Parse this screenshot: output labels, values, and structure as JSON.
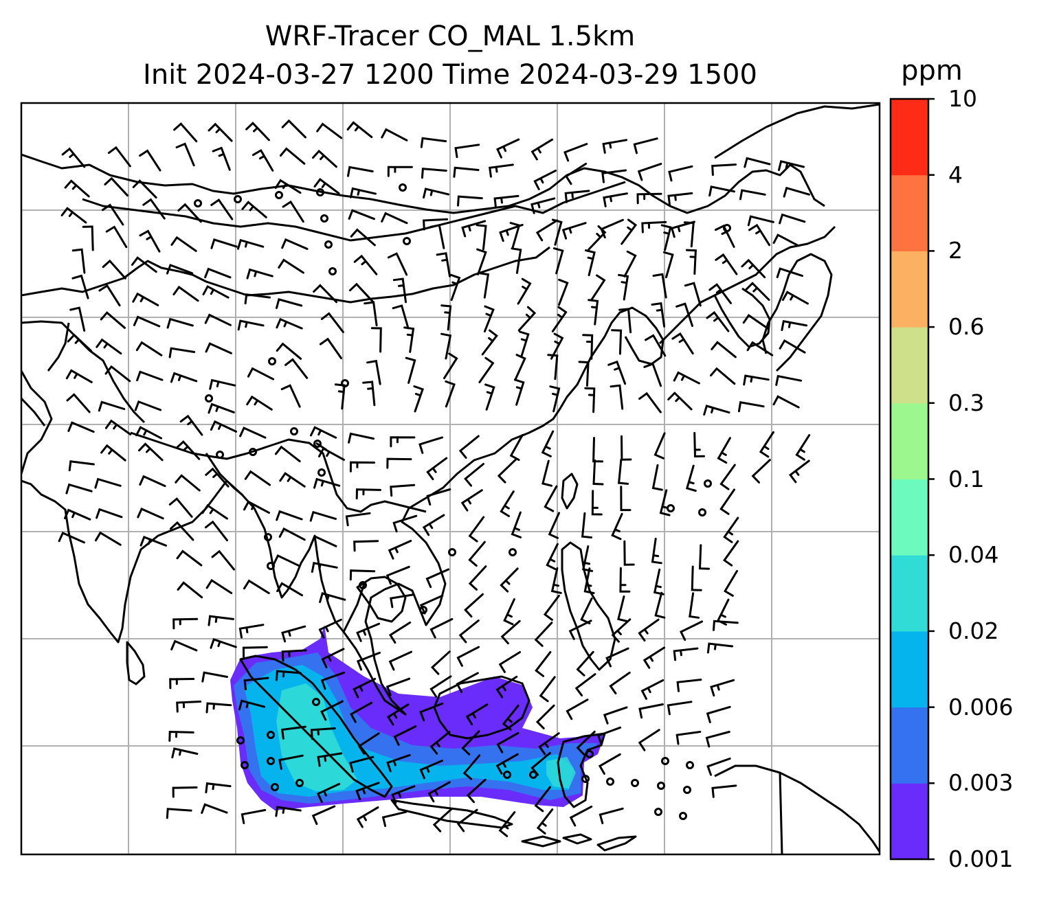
{
  "title": {
    "line1": "WRF-Tracer CO_MAL 1.5km",
    "line2": "Init 2024-03-27 1200 Time 2024-03-29 1500"
  },
  "colorbar": {
    "unit": "ppm",
    "levels": [
      "0.001",
      "0.003",
      "0.006",
      "0.02",
      "0.04",
      "0.1",
      "0.3",
      "0.6",
      "2",
      "4",
      "10"
    ],
    "colors": [
      "#6a2cfa",
      "#3572f0",
      "#06b4ed",
      "#32dcd6",
      "#6cfabf",
      "#9bf78e",
      "#cfe08a",
      "#fbb062",
      "#fe7340",
      "#fe2c16"
    ]
  },
  "map_style": {
    "coastline_color": "#000000",
    "gridline_color": "#b0b0b0",
    "barb_color": "#000000",
    "background": "#ffffff"
  }
}
